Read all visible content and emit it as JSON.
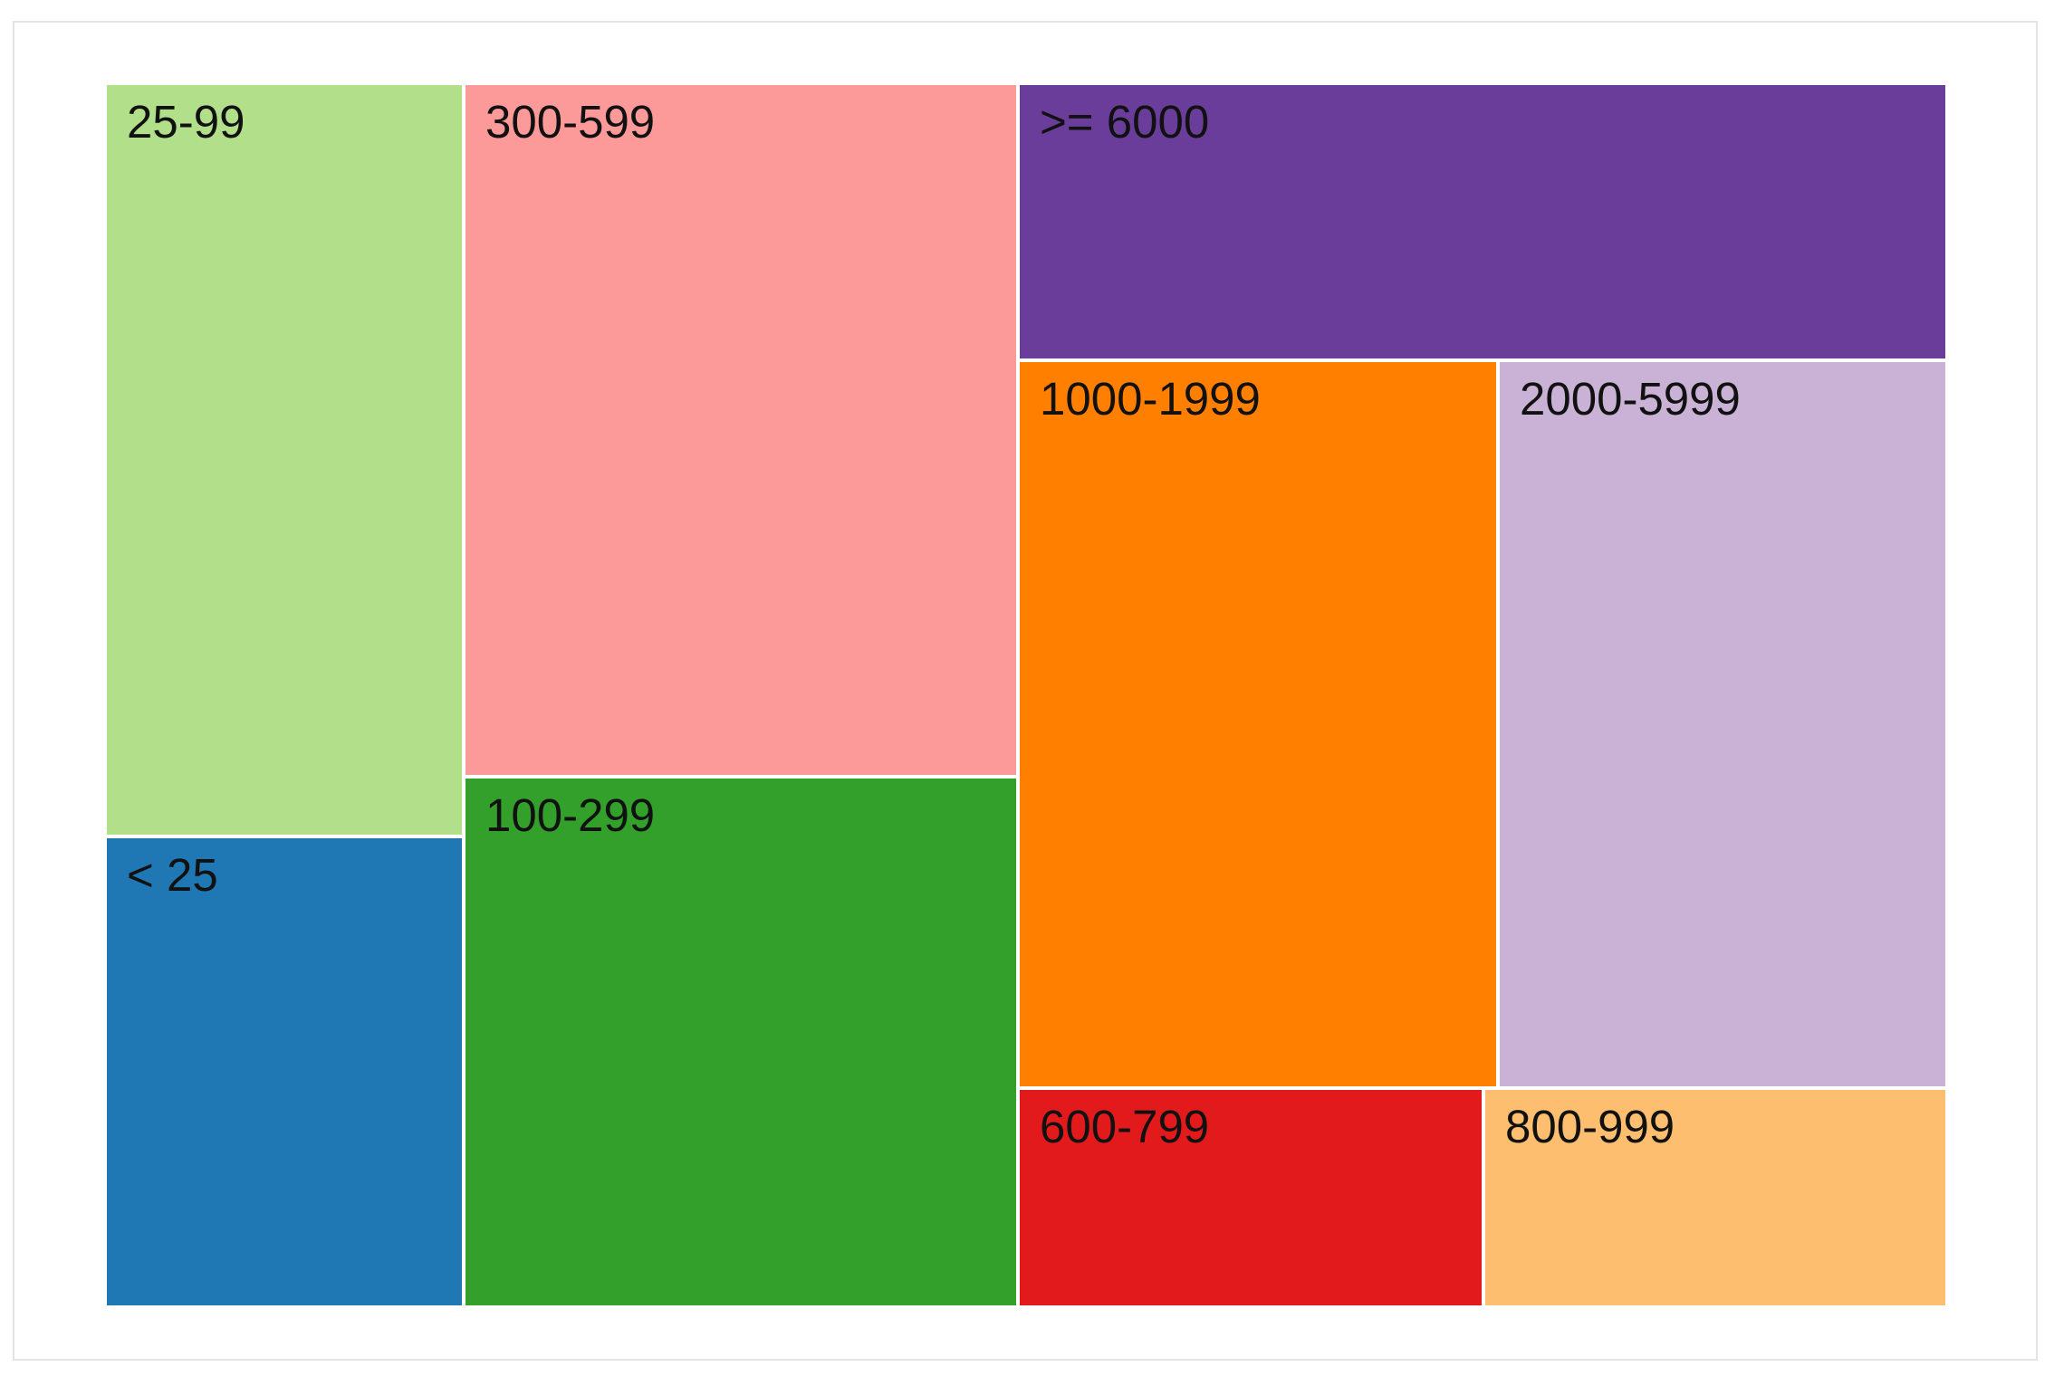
{
  "chart_data": {
    "type": "treemap",
    "title": "",
    "items": [
      {
        "label": "25-99",
        "color": "#b2df8a"
      },
      {
        "label": "< 25",
        "color": "#1f78b4"
      },
      {
        "label": "300-599",
        "color": "#fb9a99"
      },
      {
        "label": "100-299",
        "color": "#33a02c"
      },
      {
        "label": ">= 6000",
        "color": "#6a3d9a"
      },
      {
        "label": "1000-1999",
        "color": "#ff7f00"
      },
      {
        "label": "2000-5999",
        "color": "#cab2d6"
      },
      {
        "label": "600-799",
        "color": "#e31a1c"
      },
      {
        "label": "800-999",
        "color": "#fdbf6f"
      }
    ]
  }
}
